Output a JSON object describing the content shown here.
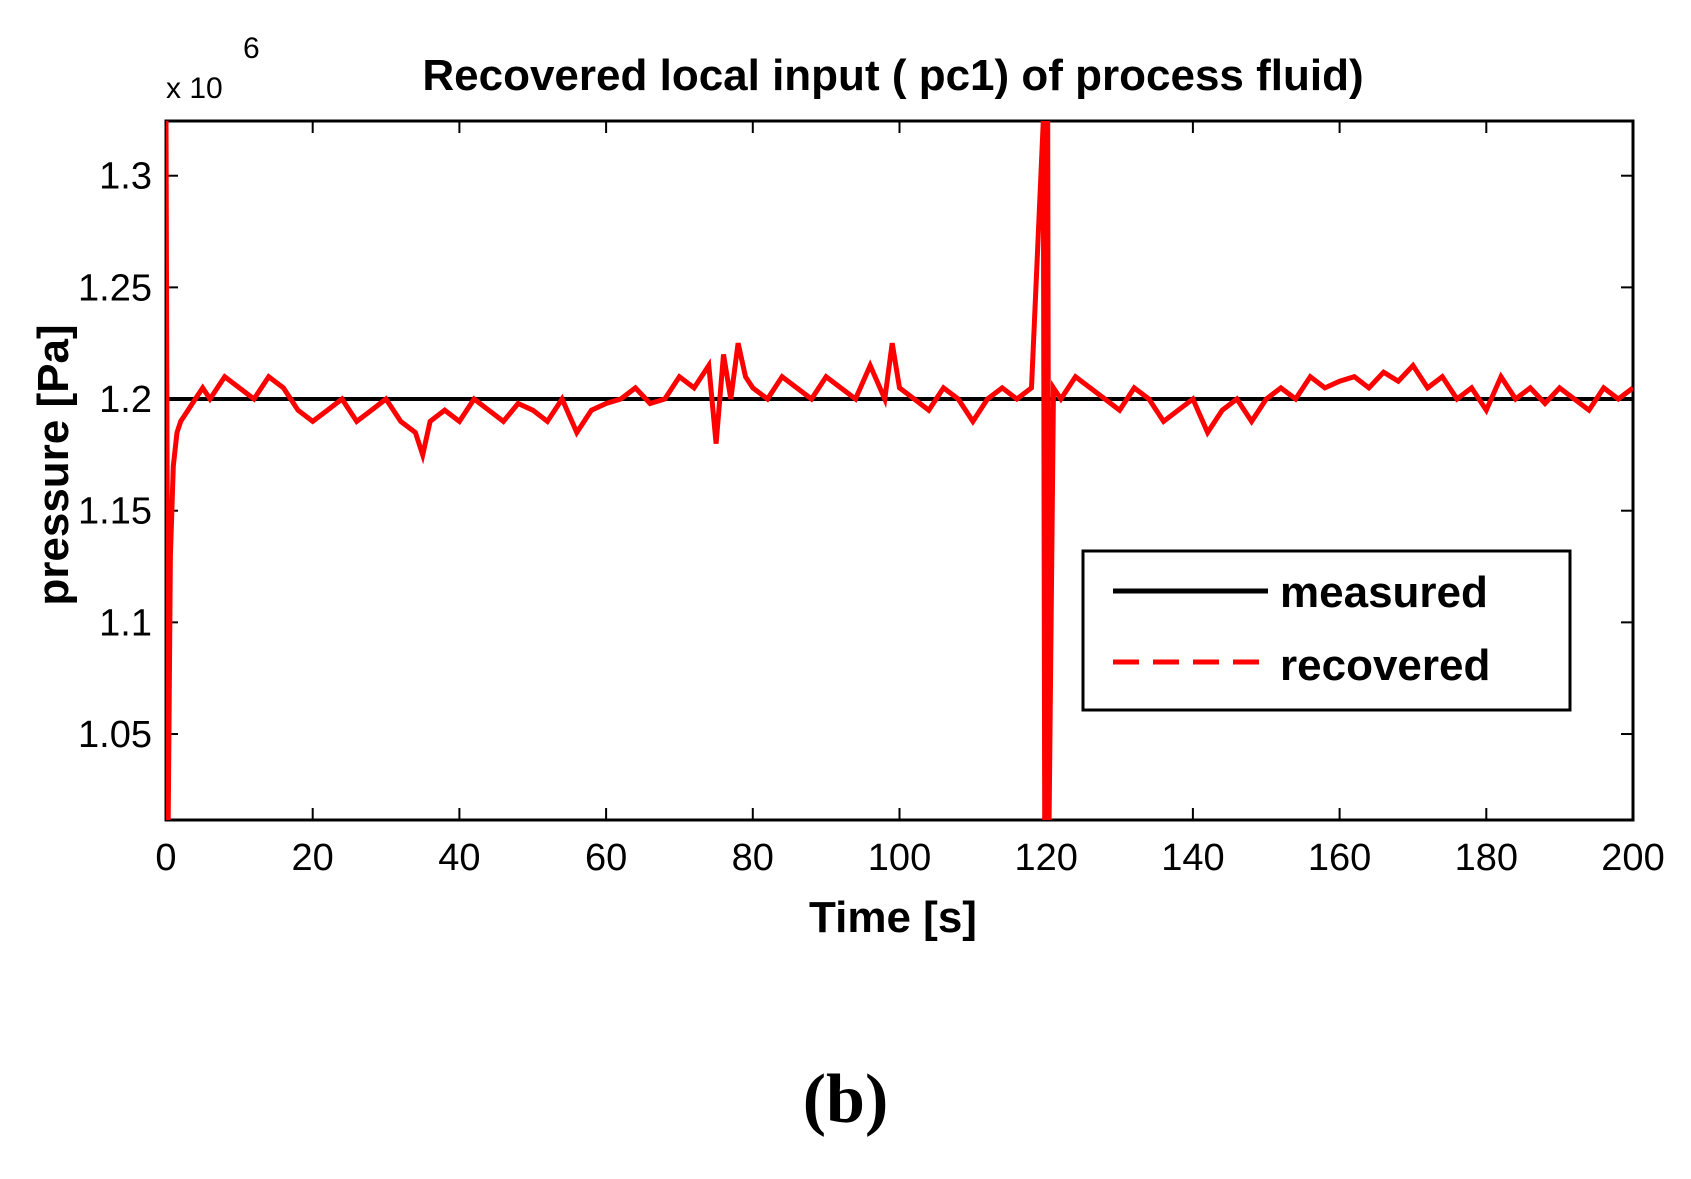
{
  "chart_data": {
    "type": "line",
    "title": "Recovered local input ( pc1) of process fluid)",
    "xlabel": "Time [s]",
    "ylabel": "pressure [Pa]",
    "y_multiplier_base": "x 10",
    "y_multiplier_exponent": "6",
    "xlim": [
      0,
      200
    ],
    "ylim": [
      1.0115,
      1.3245
    ],
    "x_ticks": [
      0,
      20,
      40,
      60,
      80,
      100,
      120,
      140,
      160,
      180,
      200
    ],
    "y_ticks": [
      1.05,
      1.1,
      1.15,
      1.2,
      1.25,
      1.3
    ],
    "x_tick_labels": [
      "0",
      "20",
      "40",
      "60",
      "80",
      "100",
      "120",
      "140",
      "160",
      "180",
      "200"
    ],
    "y_tick_labels": [
      "1.05",
      "1.1",
      "1.15",
      "1.2",
      "1.25",
      "1.3"
    ],
    "legend_position": "lower-right",
    "series": [
      {
        "name": "measured",
        "style": "solid",
        "color": "#000000",
        "x": [
          0,
          200
        ],
        "y": [
          1.2,
          1.2
        ]
      },
      {
        "name": "recovered",
        "style": "dashed",
        "color": "#ff0000",
        "x": [
          0,
          0.3,
          0.6,
          1,
          1.5,
          2,
          3,
          4,
          5,
          6,
          8,
          10,
          12,
          14,
          16,
          18,
          20,
          22,
          24,
          26,
          28,
          30,
          32,
          34,
          35,
          36,
          38,
          40,
          42,
          44,
          46,
          48,
          50,
          52,
          54,
          56,
          58,
          60,
          62,
          64,
          66,
          68,
          70,
          72,
          74,
          75,
          76,
          77,
          78,
          79,
          80,
          82,
          84,
          86,
          88,
          90,
          92,
          94,
          96,
          98,
          99,
          100,
          102,
          104,
          106,
          108,
          110,
          112,
          114,
          116,
          118,
          119.6,
          119.8,
          120,
          120.2,
          120.4,
          121,
          122,
          124,
          126,
          128,
          130,
          132,
          134,
          136,
          138,
          140,
          142,
          144,
          146,
          148,
          150,
          152,
          154,
          156,
          158,
          160,
          162,
          164,
          166,
          168,
          170,
          172,
          174,
          176,
          178,
          180,
          182,
          184,
          186,
          188,
          190,
          192,
          194,
          196,
          198,
          200
        ],
        "y": [
          1.3245,
          1.0115,
          1.13,
          1.17,
          1.185,
          1.19,
          1.195,
          1.2,
          1.205,
          1.2,
          1.21,
          1.205,
          1.2,
          1.21,
          1.205,
          1.195,
          1.19,
          1.195,
          1.2,
          1.19,
          1.195,
          1.2,
          1.19,
          1.185,
          1.175,
          1.19,
          1.195,
          1.19,
          1.2,
          1.195,
          1.19,
          1.198,
          1.195,
          1.19,
          1.2,
          1.185,
          1.195,
          1.198,
          1.2,
          1.205,
          1.198,
          1.2,
          1.21,
          1.205,
          1.215,
          1.18,
          1.22,
          1.2,
          1.225,
          1.21,
          1.205,
          1.2,
          1.21,
          1.205,
          1.2,
          1.21,
          1.205,
          1.2,
          1.215,
          1.2,
          1.225,
          1.205,
          1.2,
          1.195,
          1.205,
          1.2,
          1.19,
          1.2,
          1.205,
          1.2,
          1.205,
          1.3245,
          1.0115,
          1.19,
          1.3245,
          1.0115,
          1.205,
          1.2,
          1.21,
          1.205,
          1.2,
          1.195,
          1.205,
          1.2,
          1.19,
          1.195,
          1.2,
          1.185,
          1.195,
          1.2,
          1.19,
          1.2,
          1.205,
          1.2,
          1.21,
          1.205,
          1.208,
          1.21,
          1.205,
          1.212,
          1.208,
          1.215,
          1.205,
          1.21,
          1.2,
          1.205,
          1.195,
          1.21,
          1.2,
          1.205,
          1.198,
          1.205,
          1.2,
          1.195,
          1.205,
          1.2,
          1.205
        ]
      }
    ]
  },
  "panel_label": "(b)"
}
